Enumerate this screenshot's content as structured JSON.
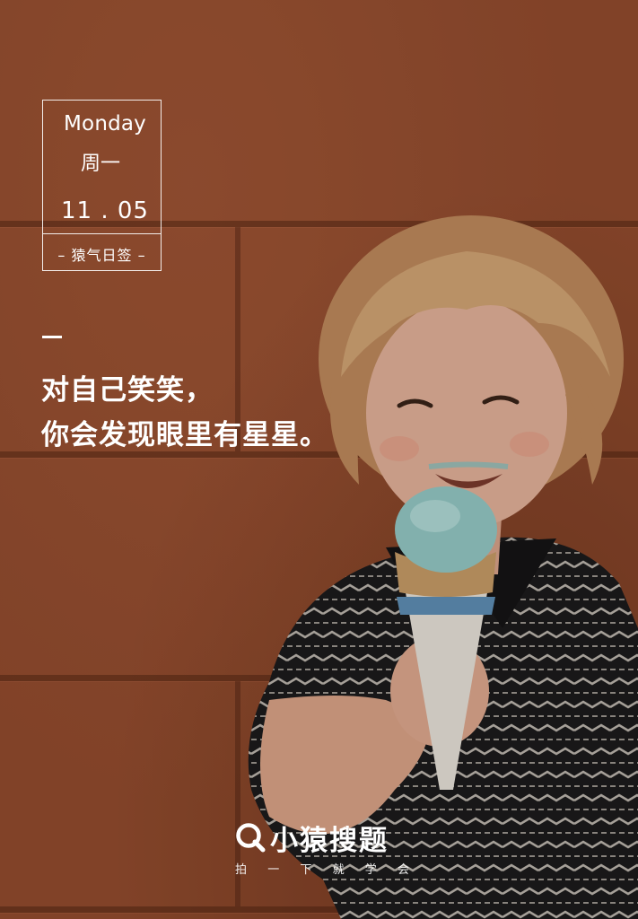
{
  "card": {
    "weekday_en": "Monday",
    "weekday_zh": "周一",
    "date": "11 . 05",
    "tag": "– 猿气日签 –"
  },
  "quote": {
    "line1": "对自己笑笑，",
    "line2": "你会发现眼里有星星。"
  },
  "brand": {
    "name": "小猿搜题",
    "slogan": [
      "拍",
      "一",
      "下",
      "就",
      "学",
      "会"
    ]
  },
  "colors": {
    "wall": "#934c2e",
    "text": "#ffffff"
  }
}
